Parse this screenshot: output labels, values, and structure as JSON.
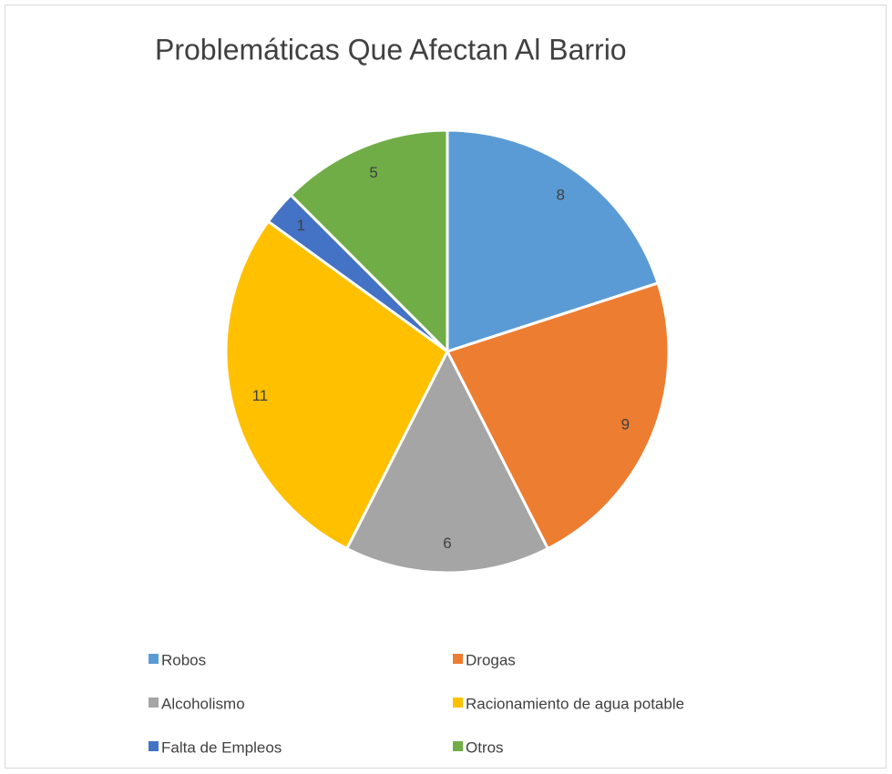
{
  "chart_data": {
    "type": "pie",
    "title": "Problemáticas Que Afectan Al Barrio",
    "categories": [
      "Robos",
      "Drogas",
      "Alcoholismo",
      "Racionamiento de agua potable",
      "Falta de Empleos",
      "Otros"
    ],
    "values": [
      8,
      9,
      6,
      11,
      1,
      5
    ],
    "colors": [
      "#5b9bd5",
      "#ed7d31",
      "#a5a5a5",
      "#ffc000",
      "#4472c4",
      "#70ad47"
    ],
    "legend": "bottom"
  }
}
